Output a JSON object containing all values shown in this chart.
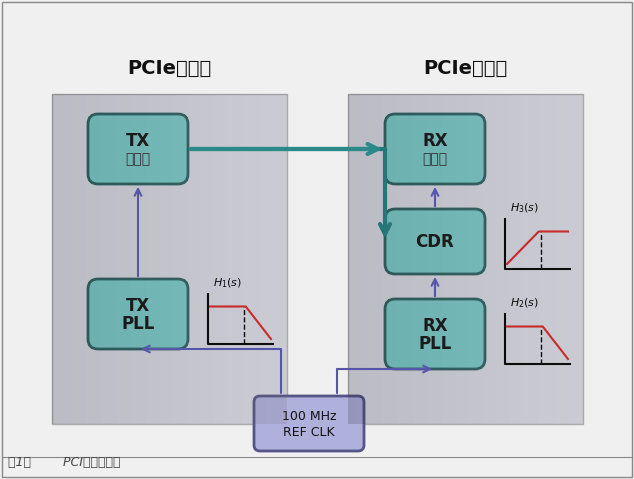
{
  "bg_color": "#f0f0f0",
  "diagram_bg": "#ffffff",
  "title_tx": "PCIe发送器",
  "title_rx": "PCIe接收器",
  "caption": "图1：        PCI系统框图。",
  "box_fill_tx": "#7ecece",
  "box_fill_rx": "#7ecece",
  "box_fill_ref": "#a0a0d0",
  "panel_fill_tx": "#e8e8ee",
  "panel_fill_rx": "#e8e8ee",
  "arrow_teal": "#2a8a8a",
  "arrow_blue": "#5555aa",
  "mini_graph_red": "#dd2222",
  "mini_graph_black": "#111111",
  "text_dark": "#222222",
  "text_title": "#111111"
}
